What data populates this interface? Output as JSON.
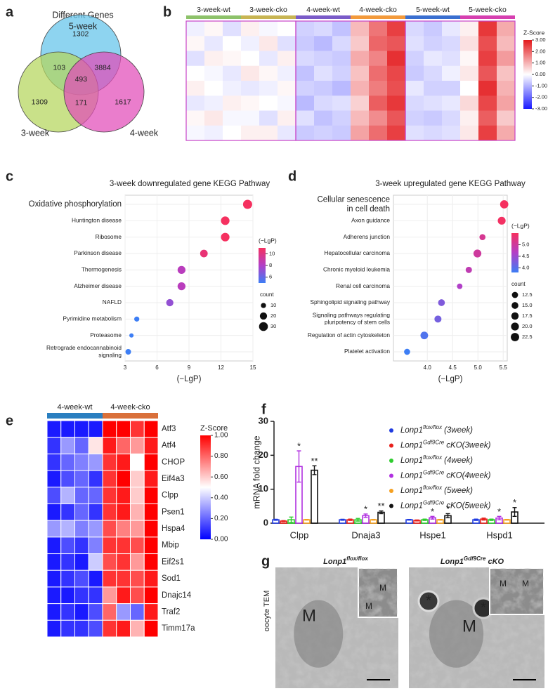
{
  "chart_data": [
    {
      "type": "venn",
      "label": "a",
      "title": "Different Genes",
      "sets": [
        {
          "name": "5-week",
          "color": "#62c3ea"
        },
        {
          "name": "3-week",
          "color": "#b4d55c"
        },
        {
          "name": "4-week",
          "color": "#e24bb9"
        }
      ],
      "regions": [
        {
          "sets": [
            "5-week"
          ],
          "value": 1302
        },
        {
          "sets": [
            "3-week"
          ],
          "value": 1309
        },
        {
          "sets": [
            "4-week"
          ],
          "value": 1617
        },
        {
          "sets": [
            "5-week",
            "3-week"
          ],
          "value": 103
        },
        {
          "sets": [
            "5-week",
            "4-week"
          ],
          "value": 3884
        },
        {
          "sets": [
            "3-week",
            "4-week"
          ],
          "value": 171
        },
        {
          "sets": [
            "5-week",
            "3-week",
            "4-week"
          ],
          "value": 493
        }
      ]
    },
    {
      "type": "heatmap",
      "label": "b",
      "groups": [
        {
          "name": "3-week-wt",
          "color": "#8dc26a"
        },
        {
          "name": "3-week-cko",
          "color": "#c8b553"
        },
        {
          "name": "4-week-wt",
          "color": "#7a5bc8"
        },
        {
          "name": "4-week-cko",
          "color": "#f39a3b"
        },
        {
          "name": "5-week-wt",
          "color": "#3a6fd0"
        },
        {
          "name": "5-week-cko",
          "color": "#d63fb0"
        }
      ],
      "values": [
        [
          -0.2,
          0.1,
          -0.4,
          0.2,
          -0.1,
          0.0,
          -0.6,
          -0.5,
          -0.8,
          0.9,
          1.8,
          2.5,
          -0.5,
          -0.7,
          -0.3,
          0.2,
          2.6,
          1.1
        ],
        [
          0.1,
          -0.3,
          0.0,
          -0.2,
          0.3,
          -0.4,
          -0.7,
          -0.9,
          -0.5,
          0.7,
          2.0,
          2.2,
          -0.4,
          -0.6,
          -0.5,
          0.4,
          2.3,
          0.9
        ],
        [
          -0.4,
          0.2,
          0.1,
          0.0,
          -0.3,
          0.2,
          -0.5,
          -0.6,
          -0.7,
          1.1,
          1.6,
          2.7,
          -0.6,
          -0.3,
          -0.4,
          0.1,
          2.5,
          1.3
        ],
        [
          0.0,
          -0.1,
          -0.3,
          0.3,
          0.1,
          -0.2,
          -0.8,
          -0.4,
          -0.6,
          0.8,
          1.9,
          2.4,
          -0.7,
          -0.5,
          -0.2,
          0.3,
          2.2,
          0.8
        ],
        [
          0.2,
          0.0,
          -0.2,
          -0.3,
          -0.2,
          0.1,
          -0.6,
          -0.7,
          -0.9,
          1.0,
          1.7,
          2.3,
          -0.3,
          -0.6,
          -0.6,
          0.0,
          2.7,
          1.0
        ],
        [
          -0.3,
          -0.2,
          0.2,
          0.1,
          0.0,
          -0.1,
          -0.9,
          -0.5,
          -0.4,
          0.6,
          2.1,
          2.6,
          -0.5,
          -0.4,
          -0.3,
          0.5,
          2.4,
          1.2
        ],
        [
          0.1,
          0.3,
          -0.1,
          -0.1,
          -0.4,
          0.2,
          -0.4,
          -0.8,
          -0.6,
          0.9,
          1.5,
          2.2,
          -0.6,
          -0.7,
          -0.5,
          0.2,
          2.1,
          0.7
        ],
        [
          -0.1,
          -0.2,
          0.0,
          0.2,
          0.2,
          -0.3,
          -0.7,
          -0.6,
          -0.7,
          1.2,
          1.9,
          2.5,
          -0.4,
          -0.5,
          -0.4,
          0.3,
          2.5,
          1.1
        ]
      ],
      "colorbar": {
        "title": "Z-Score",
        "lim": [
          -3,
          3
        ],
        "colors": [
          "#1a1aff",
          "#ffffff",
          "#e3191c"
        ],
        "ticks": [
          {
            "value": 3,
            "label": "3.00"
          },
          {
            "value": 2,
            "label": "2.00"
          },
          {
            "value": 1,
            "label": "1.00"
          },
          {
            "value": 0,
            "label": "0.00"
          },
          {
            "value": -1,
            "label": "-1.00"
          },
          {
            "value": -2,
            "label": "-2.00"
          },
          {
            "value": -3,
            "label": "-3.00"
          }
        ]
      }
    },
    {
      "type": "dotplot",
      "label": "c",
      "title": "3-week downregulated gene KEGG Pathway",
      "xlabel": "(−LgP)",
      "categories": [
        "Oxidative phosphorylation",
        "Huntington disease",
        "Ribosome",
        "Parkinson disease",
        "Thermogenesis",
        "Alzheimer disease",
        "NAFLD",
        "Pyrimidine metabolism",
        "Proteasome",
        [
          "Retrograde  endocannabinoid",
          "signaling"
        ]
      ],
      "highlight": [
        0
      ],
      "highlight_color": "#e8211c",
      "values": [
        14.5,
        12.4,
        12.4,
        10.4,
        8.3,
        8.3,
        7.2,
        4.1,
        3.6,
        3.3
      ],
      "counts": [
        32,
        28,
        28,
        22,
        24,
        24,
        20,
        10,
        7,
        12
      ],
      "xlim": [
        3,
        15
      ],
      "xticks": [
        3,
        6,
        9,
        12,
        15
      ],
      "grid": true,
      "colorbar": {
        "title": "(−LgP)",
        "lim": [
          5,
          11
        ],
        "colors": [
          "#3d7ef5",
          "#b23fc7",
          "#f5305f"
        ],
        "ticks": [
          6,
          8,
          10
        ]
      },
      "size_legend": {
        "title": "count",
        "sizes": [
          10,
          20,
          30
        ]
      }
    },
    {
      "type": "dotplot",
      "label": "d",
      "title": "3-week upregulated gene KEGG Pathway",
      "xlabel": "(−LgP)",
      "categories": [
        [
          "Cellular senescence",
          "in cell death"
        ],
        "Axon guidance",
        "Adherens junction",
        "Hepatocellular carcinoma",
        "Chronic myeloid leukemia",
        "Renal cell carcinoma",
        "Sphingolipid signaling pathway",
        [
          "Signaling pathways regulating",
          "pluripotency of stem cells"
        ],
        "Regulation of actin cytoskeleton",
        "Platelet activation"
      ],
      "highlight": [
        0
      ],
      "highlight_color": "#e8211c",
      "values": [
        5.52,
        5.47,
        5.09,
        4.99,
        4.82,
        4.64,
        4.28,
        4.21,
        3.94,
        3.6
      ],
      "counts": [
        22,
        20,
        12,
        20,
        13,
        10,
        15,
        16,
        19,
        12
      ],
      "xlim": [
        3.33,
        5.58
      ],
      "xticks": [
        {
          "value": 4,
          "label": "4.0"
        },
        {
          "value": 4.5,
          "label": "4.5"
        },
        {
          "value": 5,
          "label": "5.0"
        },
        {
          "value": 5.5,
          "label": "5.5"
        }
      ],
      "grid": true,
      "colorbar": {
        "title": "(−LgP)",
        "lim": [
          3.8,
          5.5
        ],
        "colors": [
          "#3d7ef5",
          "#b23fc7",
          "#f5305f"
        ],
        "ticks": [
          {
            "value": 5,
            "label": "5.0"
          },
          {
            "value": 4.5,
            "label": "4.5"
          },
          {
            "value": 4,
            "label": "4.0"
          }
        ]
      },
      "size_legend": {
        "title": "count",
        "sizes": [
          12.5,
          {
            "value": 15,
            "label": "15.0"
          },
          17.5,
          {
            "value": 20,
            "label": "20.0"
          },
          22.5
        ]
      }
    },
    {
      "type": "heatmap",
      "label": "e",
      "groups": [
        {
          "name": "4-week-wt",
          "color": "#2a7fc0"
        },
        {
          "name": "4-week-cko",
          "color": "#d9703a"
        }
      ],
      "rows": [
        "Atf3",
        "Atf4",
        "CHOP",
        "Eif4a3",
        "Clpp",
        "Psen1",
        "Hspa4",
        "Mbip",
        "Eif2s1",
        "Sod1",
        "Dnajc14",
        "Traf2",
        "Timm17a"
      ],
      "values": [
        [
          0.05,
          0.05,
          0.05,
          0.05,
          1.0,
          1.0,
          0.9,
          1.0
        ],
        [
          0.1,
          0.3,
          0.2,
          0.55,
          0.95,
          0.8,
          0.7,
          0.95
        ],
        [
          0.1,
          0.2,
          0.25,
          0.3,
          0.9,
          0.95,
          0.5,
          1.0
        ],
        [
          0.05,
          0.15,
          0.2,
          0.1,
          0.9,
          1.0,
          0.6,
          0.95
        ],
        [
          0.15,
          0.35,
          0.2,
          0.2,
          0.9,
          0.95,
          0.6,
          1.0
        ],
        [
          0.05,
          0.1,
          0.2,
          0.1,
          0.9,
          0.95,
          0.65,
          1.0
        ],
        [
          0.3,
          0.35,
          0.25,
          0.3,
          0.85,
          0.75,
          0.7,
          1.0
        ],
        [
          0.05,
          0.15,
          0.1,
          0.25,
          0.9,
          0.9,
          0.85,
          1.0
        ],
        [
          0.05,
          0.1,
          0.05,
          0.4,
          0.85,
          0.9,
          0.7,
          1.0
        ],
        [
          0.05,
          0.1,
          0.15,
          0.05,
          0.9,
          0.9,
          0.85,
          0.95
        ],
        [
          0.05,
          0.05,
          0.1,
          0.1,
          0.7,
          0.95,
          0.85,
          1.0
        ],
        [
          0.05,
          0.1,
          0.05,
          0.15,
          0.8,
          0.3,
          0.2,
          0.95
        ],
        [
          0.05,
          0.1,
          0.1,
          0.15,
          0.9,
          0.95,
          0.65,
          1.0
        ]
      ],
      "colorbar": {
        "title": "Z-Score",
        "lim": [
          0,
          1
        ],
        "colors": [
          "#0000ff",
          "#ffffff",
          "#ff0000"
        ],
        "ticks": [
          {
            "value": 1,
            "label": "1.00"
          },
          {
            "value": 0.8,
            "label": "0.80"
          },
          {
            "value": 0.6,
            "label": "0.60"
          },
          {
            "value": 0.4,
            "label": "0.40"
          },
          {
            "value": 0.2,
            "label": "0.20"
          },
          {
            "value": 0,
            "label": "0.00"
          }
        ]
      }
    },
    {
      "type": "bar",
      "label": "f",
      "ylabel": "mRNA fold change",
      "categories": [
        "Clpp",
        "Dnaja3",
        "Hspe1",
        "Hspd1"
      ],
      "ylim": [
        0,
        30
      ],
      "yticks": [
        0,
        10,
        20,
        30
      ],
      "series": [
        {
          "name": [
            "Lonp1",
            "flox/flox",
            "(3week)"
          ],
          "color": "#1f3be0",
          "values": [
            1.0,
            1.0,
            1.0,
            1.0
          ],
          "errors": [
            0.15,
            0.15,
            0.1,
            0.2
          ]
        },
        {
          "name": [
            "Lonp1",
            "Gdf9Cre",
            "cKO(3week)"
          ],
          "color": "#e8211c",
          "values": [
            0.6,
            1.0,
            0.8,
            1.2
          ],
          "errors": [
            0.15,
            0.2,
            0.15,
            0.3
          ]
        },
        {
          "name": [
            "Lonp1",
            "flox/flox",
            "(4week)"
          ],
          "color": "#2ecc2e",
          "values": [
            1.0,
            1.0,
            1.0,
            1.0
          ],
          "errors": [
            0.8,
            0.4,
            0.2,
            0.2
          ]
        },
        {
          "name": [
            "Lonp1",
            "Gdf9Cre",
            "cKO(4week)"
          ],
          "color": "#b030e0",
          "values": [
            16.7,
            2.2,
            1.6,
            1.5
          ],
          "errors": [
            4.6,
            0.5,
            0.4,
            0.5
          ],
          "annotations": [
            "*",
            "*",
            "*",
            "*"
          ]
        },
        {
          "name": [
            "Lonp1",
            "flox/flox",
            "(5week)"
          ],
          "color": "#f5a020",
          "values": [
            1.0,
            1.0,
            1.0,
            1.0
          ],
          "errors": [
            0.1,
            0.1,
            0.1,
            0.1
          ]
        },
        {
          "name": [
            "Lonp1",
            "Gdf9Cre",
            "cKO(5week)"
          ],
          "color": "#111111",
          "values": [
            15.6,
            3.2,
            2.2,
            3.3
          ],
          "errors": [
            1.3,
            0.4,
            0.6,
            1.3
          ],
          "annotations": [
            "**",
            "**",
            "*",
            "*"
          ]
        }
      ]
    },
    {
      "type": "micrograph",
      "label": "g",
      "ylabel": "oocyte TEM",
      "images": [
        {
          "title": [
            "Lonp1",
            "flox/flox"
          ],
          "annotations": [
            "M",
            "M",
            "M"
          ]
        },
        {
          "title": [
            "Lonp1",
            "Gdf9Cre",
            "cKO"
          ],
          "annotations": [
            "M",
            "M",
            "M",
            "*",
            "*"
          ]
        }
      ]
    }
  ]
}
